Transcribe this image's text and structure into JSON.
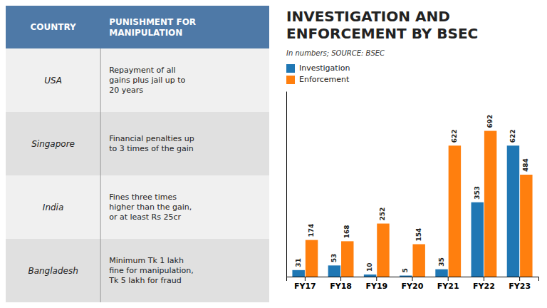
{
  "chart_data": [
    {
      "type": "table",
      "columns": [
        "COUNTRY",
        "PUNISHMENT FOR\nMANIPULATION"
      ],
      "rows": [
        [
          "USA",
          "Repayment of all\ngains plus jail up to\n20 years"
        ],
        [
          "Singapore",
          "Financial penalties up\nto 3 times of the gain"
        ],
        [
          "India",
          "Fines three times\nhigher than the gain,\nor at least Rs 25cr"
        ],
        [
          "Bangladesh",
          "Minimum Tk 1 lakh\nfine for manipulation,\nTk 5 lakh for fraud"
        ]
      ]
    },
    {
      "type": "bar",
      "title": "INVESTIGATION AND\nENFORCEMENT BY BSEC",
      "subtitle": "In numbers; SOURCE: BSEC",
      "categories": [
        "FY17",
        "FY18",
        "FY19",
        "FY20",
        "FY21",
        "FY22",
        "FY23"
      ],
      "series": [
        {
          "name": "Investigation",
          "values": [
            31,
            53,
            10,
            5,
            35,
            353,
            622
          ]
        },
        {
          "name": "Enforcement",
          "values": [
            174,
            168,
            252,
            154,
            622,
            692,
            484
          ]
        }
      ],
      "ylim": [
        0,
        880
      ],
      "grid": false,
      "legend": "upper left",
      "data_labels": true,
      "tick_labels": "x"
    }
  ]
}
